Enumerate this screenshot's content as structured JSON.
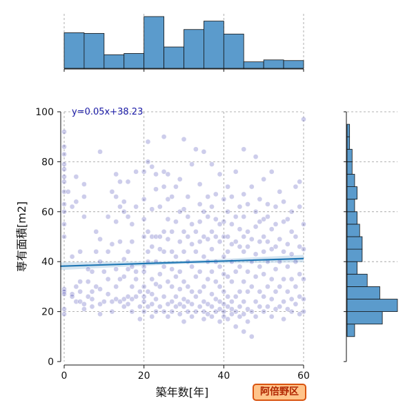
{
  "chart_data": {
    "type": "scatter",
    "xlabel": "築年数[年]",
    "ylabel": "専有面積[m2]",
    "xlim": [
      0,
      60
    ],
    "ylim": [
      0,
      100
    ],
    "xticks": [
      0,
      20,
      40,
      60
    ],
    "yticks": [
      0,
      20,
      40,
      60,
      80,
      100
    ],
    "grid": true,
    "annotation": "y=0.05x+38.23",
    "badge": "阿倍野区",
    "regression": {
      "slope": 0.05,
      "intercept": 38.23,
      "band_halfwidth_min": 0.6,
      "band_halfwidth_max": 1.5
    },
    "colors": {
      "points": "#1a1aa6",
      "regression_line": "#1f77b4",
      "band": "#b9d3e8",
      "hist_fill": "#5b9bcc",
      "hist_edge": "#111111",
      "grid": "#999999",
      "badge_fill": "#ffc48a",
      "badge_border": "#d9530f",
      "badge_text": "#b02500"
    },
    "x_hist": {
      "bin_edges": [
        0,
        5,
        10,
        15,
        20,
        25,
        30,
        35,
        40,
        45,
        50,
        55,
        60
      ],
      "heights": [
        55,
        54,
        21,
        23,
        80,
        33,
        60,
        73,
        53,
        10,
        13,
        12
      ]
    },
    "y_hist": {
      "bin_edges": [
        10,
        15,
        20,
        25,
        30,
        35,
        40,
        45,
        50,
        55,
        60,
        65,
        70,
        75,
        80,
        85,
        90,
        95
      ],
      "counts": [
        3,
        14,
        20,
        13,
        8,
        4,
        6,
        6,
        5,
        4,
        3,
        4,
        3,
        2,
        2,
        1,
        1
      ]
    },
    "points": [
      [
        0,
        92
      ],
      [
        0,
        86
      ],
      [
        0,
        83
      ],
      [
        0,
        79
      ],
      [
        0,
        77
      ],
      [
        0,
        74
      ],
      [
        0,
        72
      ],
      [
        0,
        68
      ],
      [
        0,
        63
      ],
      [
        0,
        60
      ],
      [
        0,
        55
      ],
      [
        0,
        50
      ],
      [
        0,
        29
      ],
      [
        0,
        28
      ],
      [
        0,
        27
      ],
      [
        0,
        21
      ],
      [
        0,
        19
      ],
      [
        2,
        27
      ],
      [
        2,
        26
      ],
      [
        3,
        24
      ],
      [
        3,
        30
      ],
      [
        4,
        24
      ],
      [
        4,
        28
      ],
      [
        4,
        32
      ],
      [
        5,
        23
      ],
      [
        5,
        21
      ],
      [
        5,
        58
      ],
      [
        5,
        66
      ],
      [
        5,
        71
      ],
      [
        6,
        26
      ],
      [
        6,
        32
      ],
      [
        7,
        22
      ],
      [
        7,
        25
      ],
      [
        7,
        28
      ],
      [
        2,
        62
      ],
      [
        3,
        64
      ],
      [
        2,
        42
      ],
      [
        4,
        44
      ],
      [
        1,
        68
      ],
      [
        3,
        74
      ],
      [
        6,
        37
      ],
      [
        7,
        36
      ],
      [
        8,
        30
      ],
      [
        8,
        44
      ],
      [
        8,
        52
      ],
      [
        9,
        19
      ],
      [
        9,
        23
      ],
      [
        9,
        29
      ],
      [
        9,
        40
      ],
      [
        9,
        49
      ],
      [
        9,
        84
      ],
      [
        10,
        24
      ],
      [
        10,
        36
      ],
      [
        11,
        27
      ],
      [
        11,
        33
      ],
      [
        11,
        44
      ],
      [
        11,
        58
      ],
      [
        12,
        20
      ],
      [
        12,
        24
      ],
      [
        12,
        47
      ],
      [
        12,
        68
      ],
      [
        13,
        25
      ],
      [
        13,
        30
      ],
      [
        13,
        37
      ],
      [
        13,
        56
      ],
      [
        13,
        66
      ],
      [
        13,
        75
      ],
      [
        14,
        24
      ],
      [
        14,
        33
      ],
      [
        14,
        48
      ],
      [
        14,
        62
      ],
      [
        14,
        72
      ],
      [
        15,
        22
      ],
      [
        15,
        25
      ],
      [
        15,
        34
      ],
      [
        15,
        41
      ],
      [
        15,
        60
      ],
      [
        15,
        64
      ],
      [
        16,
        23
      ],
      [
        16,
        26
      ],
      [
        16,
        37
      ],
      [
        16,
        44
      ],
      [
        16,
        58
      ],
      [
        16,
        72
      ],
      [
        17,
        20
      ],
      [
        17,
        25
      ],
      [
        17,
        30
      ],
      [
        17,
        38
      ],
      [
        17,
        48
      ],
      [
        17,
        55
      ],
      [
        18,
        26
      ],
      [
        18,
        33
      ],
      [
        18,
        36
      ],
      [
        18,
        62
      ],
      [
        18,
        76
      ],
      [
        19,
        17
      ],
      [
        19,
        22
      ],
      [
        19,
        28
      ],
      [
        20,
        20
      ],
      [
        20,
        24
      ],
      [
        20,
        26
      ],
      [
        20,
        30
      ],
      [
        20,
        36
      ],
      [
        20,
        38
      ],
      [
        20,
        50
      ],
      [
        20,
        57
      ],
      [
        20,
        65
      ],
      [
        20,
        76
      ],
      [
        21,
        22
      ],
      [
        21,
        28
      ],
      [
        21,
        40
      ],
      [
        21,
        44
      ],
      [
        21,
        52
      ],
      [
        21,
        80
      ],
      [
        21,
        88
      ],
      [
        22,
        18
      ],
      [
        22,
        23
      ],
      [
        22,
        27
      ],
      [
        22,
        33
      ],
      [
        22,
        46
      ],
      [
        22,
        50
      ],
      [
        22,
        61
      ],
      [
        22,
        78
      ],
      [
        23,
        20
      ],
      [
        23,
        25
      ],
      [
        23,
        31
      ],
      [
        23,
        40
      ],
      [
        23,
        50
      ],
      [
        23,
        69
      ],
      [
        23,
        75
      ],
      [
        24,
        22
      ],
      [
        24,
        30
      ],
      [
        24,
        35
      ],
      [
        24,
        45
      ],
      [
        24,
        50
      ],
      [
        24,
        62
      ],
      [
        25,
        20
      ],
      [
        25,
        26
      ],
      [
        25,
        38
      ],
      [
        25,
        44
      ],
      [
        25,
        52
      ],
      [
        25,
        70
      ],
      [
        25,
        76
      ],
      [
        25,
        90
      ],
      [
        26,
        18
      ],
      [
        26,
        23
      ],
      [
        26,
        32
      ],
      [
        26,
        49
      ],
      [
        26,
        57
      ],
      [
        26,
        65
      ],
      [
        26,
        75
      ],
      [
        27,
        20
      ],
      [
        27,
        24
      ],
      [
        27,
        30
      ],
      [
        27,
        37
      ],
      [
        27,
        44
      ],
      [
        27,
        52
      ],
      [
        27,
        66
      ],
      [
        28,
        22
      ],
      [
        28,
        26
      ],
      [
        28,
        34
      ],
      [
        28,
        42
      ],
      [
        28,
        56
      ],
      [
        28,
        70
      ],
      [
        29,
        19
      ],
      [
        29,
        23
      ],
      [
        29,
        29
      ],
      [
        29,
        36
      ],
      [
        29,
        48
      ],
      [
        29,
        60
      ],
      [
        29,
        73
      ],
      [
        30,
        16
      ],
      [
        30,
        22
      ],
      [
        30,
        25
      ],
      [
        30,
        32
      ],
      [
        30,
        44
      ],
      [
        30,
        52
      ],
      [
        30,
        61
      ],
      [
        30,
        89
      ],
      [
        31,
        20
      ],
      [
        31,
        24
      ],
      [
        31,
        30
      ],
      [
        31,
        40
      ],
      [
        31,
        50
      ],
      [
        31,
        58
      ],
      [
        31,
        66
      ],
      [
        32,
        18
      ],
      [
        32,
        23
      ],
      [
        32,
        28
      ],
      [
        32,
        38
      ],
      [
        32,
        47
      ],
      [
        32,
        55
      ],
      [
        32,
        79
      ],
      [
        33,
        20
      ],
      [
        33,
        26
      ],
      [
        33,
        34
      ],
      [
        33,
        44
      ],
      [
        33,
        52
      ],
      [
        33,
        85
      ],
      [
        34,
        22
      ],
      [
        34,
        28
      ],
      [
        34,
        36
      ],
      [
        34,
        48
      ],
      [
        34,
        56
      ],
      [
        34,
        63
      ],
      [
        34,
        71
      ],
      [
        35,
        17
      ],
      [
        35,
        20
      ],
      [
        35,
        24
      ],
      [
        35,
        30
      ],
      [
        35,
        42
      ],
      [
        35,
        50
      ],
      [
        35,
        60
      ],
      [
        35,
        84
      ],
      [
        36,
        19
      ],
      [
        36,
        23
      ],
      [
        36,
        33
      ],
      [
        36,
        40
      ],
      [
        36,
        49
      ],
      [
        36,
        58
      ],
      [
        36,
        66
      ],
      [
        37,
        18
      ],
      [
        37,
        22
      ],
      [
        37,
        27
      ],
      [
        37,
        36
      ],
      [
        37,
        45
      ],
      [
        37,
        52
      ],
      [
        37,
        62
      ],
      [
        37,
        79
      ],
      [
        38,
        20
      ],
      [
        38,
        25
      ],
      [
        38,
        32
      ],
      [
        38,
        40
      ],
      [
        38,
        50
      ],
      [
        38,
        57
      ],
      [
        38,
        67
      ],
      [
        39,
        16
      ],
      [
        39,
        21
      ],
      [
        39,
        24
      ],
      [
        39,
        30
      ],
      [
        39,
        38
      ],
      [
        39,
        48
      ],
      [
        39,
        55
      ],
      [
        39,
        75
      ],
      [
        40,
        18
      ],
      [
        40,
        20
      ],
      [
        40,
        23
      ],
      [
        40,
        28
      ],
      [
        40,
        35
      ],
      [
        40,
        42
      ],
      [
        40,
        50
      ],
      [
        40,
        56
      ],
      [
        40,
        65
      ],
      [
        41,
        17
      ],
      [
        41,
        22
      ],
      [
        41,
        26
      ],
      [
        41,
        34
      ],
      [
        41,
        44
      ],
      [
        41,
        50
      ],
      [
        41,
        60
      ],
      [
        41,
        70
      ],
      [
        42,
        19
      ],
      [
        42,
        21
      ],
      [
        42,
        24
      ],
      [
        42,
        32
      ],
      [
        42,
        40
      ],
      [
        42,
        47
      ],
      [
        42,
        55
      ],
      [
        42,
        66
      ],
      [
        43,
        14
      ],
      [
        43,
        20
      ],
      [
        43,
        26
      ],
      [
        43,
        36
      ],
      [
        43,
        48
      ],
      [
        43,
        58
      ],
      [
        43,
        76
      ],
      [
        44,
        18
      ],
      [
        44,
        22
      ],
      [
        44,
        28
      ],
      [
        44,
        38
      ],
      [
        44,
        46
      ],
      [
        44,
        53
      ],
      [
        44,
        62
      ],
      [
        45,
        12
      ],
      [
        45,
        19
      ],
      [
        45,
        24
      ],
      [
        45,
        32
      ],
      [
        45,
        44
      ],
      [
        45,
        50
      ],
      [
        45,
        58
      ],
      [
        45,
        67
      ],
      [
        45,
        85
      ],
      [
        46,
        16
      ],
      [
        46,
        21
      ],
      [
        46,
        28
      ],
      [
        46,
        36
      ],
      [
        46,
        46
      ],
      [
        46,
        52
      ],
      [
        46,
        63
      ],
      [
        47,
        10
      ],
      [
        47,
        20
      ],
      [
        47,
        30
      ],
      [
        47,
        40
      ],
      [
        47,
        49
      ],
      [
        47,
        70
      ],
      [
        48,
        18
      ],
      [
        48,
        24
      ],
      [
        48,
        34
      ],
      [
        48,
        43
      ],
      [
        48,
        54
      ],
      [
        48,
        60
      ],
      [
        48,
        82
      ],
      [
        49,
        22
      ],
      [
        49,
        28
      ],
      [
        49,
        38
      ],
      [
        49,
        48
      ],
      [
        49,
        56
      ],
      [
        49,
        65
      ],
      [
        50,
        20
      ],
      [
        50,
        26
      ],
      [
        50,
        35
      ],
      [
        50,
        44
      ],
      [
        50,
        50
      ],
      [
        50,
        57
      ],
      [
        50,
        73
      ],
      [
        51,
        22
      ],
      [
        51,
        30
      ],
      [
        51,
        40
      ],
      [
        51,
        48
      ],
      [
        51,
        58
      ],
      [
        51,
        63
      ],
      [
        52,
        18
      ],
      [
        52,
        25
      ],
      [
        52,
        33
      ],
      [
        52,
        45
      ],
      [
        52,
        53
      ],
      [
        52,
        76
      ],
      [
        53,
        21
      ],
      [
        53,
        28
      ],
      [
        53,
        37
      ],
      [
        53,
        46
      ],
      [
        53,
        55
      ],
      [
        53,
        62
      ],
      [
        54,
        22
      ],
      [
        54,
        30
      ],
      [
        54,
        40
      ],
      [
        54,
        49
      ],
      [
        54,
        68
      ],
      [
        55,
        17
      ],
      [
        55,
        24
      ],
      [
        55,
        33
      ],
      [
        55,
        44
      ],
      [
        55,
        56
      ],
      [
        55,
        64
      ],
      [
        56,
        21
      ],
      [
        56,
        28
      ],
      [
        56,
        38
      ],
      [
        56,
        47
      ],
      [
        56,
        57
      ],
      [
        57,
        20
      ],
      [
        57,
        25
      ],
      [
        57,
        33
      ],
      [
        57,
        43
      ],
      [
        57,
        52
      ],
      [
        57,
        60
      ],
      [
        58,
        23
      ],
      [
        58,
        30
      ],
      [
        58,
        40
      ],
      [
        58,
        50
      ],
      [
        58,
        70
      ],
      [
        59,
        19
      ],
      [
        59,
        26
      ],
      [
        59,
        35
      ],
      [
        59,
        46
      ],
      [
        59,
        62
      ],
      [
        59,
        72
      ],
      [
        60,
        20
      ],
      [
        60,
        25
      ],
      [
        60,
        33
      ],
      [
        60,
        45
      ],
      [
        60,
        55
      ],
      [
        60,
        97
      ]
    ]
  }
}
